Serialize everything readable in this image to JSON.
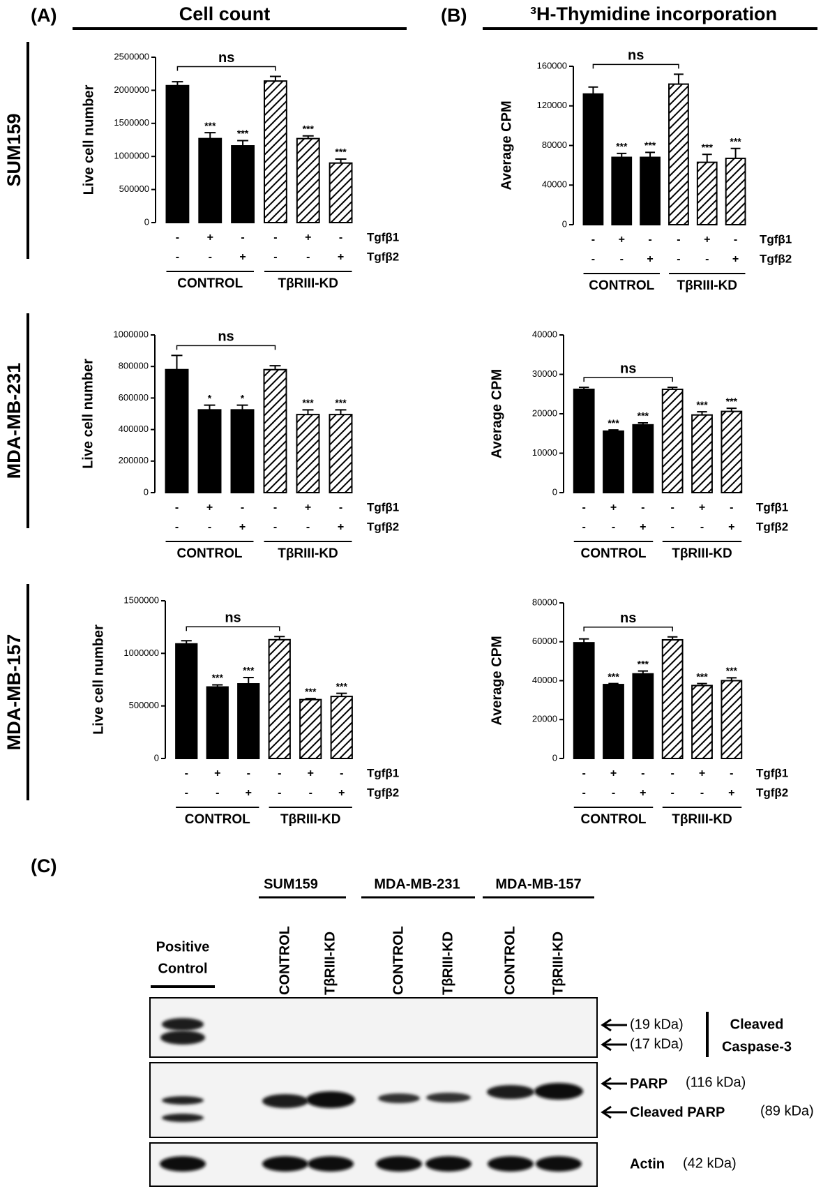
{
  "headers": [
    {
      "label": "(A)",
      "title": "Cell count"
    },
    {
      "label": "(B)",
      "title": "³H-Thymidine incorporation"
    }
  ],
  "row_labels": [
    "SUM159",
    "MDA-MB-231",
    "MDA-MB-157"
  ],
  "chart_data": [
    {
      "type": "bar",
      "ylabel": "Live cell number",
      "ylim": [
        0,
        2500000
      ],
      "yticks": [
        0,
        500000,
        1000000,
        1500000,
        2000000,
        2500000
      ],
      "values": [
        2070000,
        1270000,
        1160000,
        2140000,
        1270000,
        900000
      ],
      "errors": [
        60000,
        90000,
        80000,
        70000,
        40000,
        60000
      ],
      "fills": [
        "solid",
        "solid",
        "solid",
        "hatch",
        "hatch",
        "hatch"
      ],
      "color": "#000000",
      "significance": [
        null,
        "***",
        "***",
        null,
        "***",
        "***"
      ],
      "annotation": "ns",
      "treatments": [
        {
          "name": "Tgfβ1",
          "signs": [
            "-",
            "+",
            "-",
            "-",
            "+",
            "-"
          ]
        },
        {
          "name": "Tgfβ2",
          "signs": [
            "-",
            "-",
            "+",
            "-",
            "-",
            "+"
          ]
        }
      ],
      "groups": [
        "CONTROL",
        "TβRIII-KD"
      ]
    },
    {
      "type": "bar",
      "ylabel": "Average CPM",
      "ylim": [
        0,
        160000
      ],
      "yticks": [
        0,
        40000,
        80000,
        120000,
        160000
      ],
      "values": [
        132000,
        68000,
        68000,
        142000,
        63000,
        67000
      ],
      "errors": [
        7000,
        4000,
        5000,
        10000,
        8000,
        10000
      ],
      "fills": [
        "solid",
        "solid",
        "solid",
        "hatch",
        "hatch",
        "hatch"
      ],
      "color": "#000000",
      "significance": [
        null,
        "***",
        "***",
        null,
        "***",
        "***"
      ],
      "annotation": "ns",
      "treatments": [
        {
          "name": "Tgfβ1",
          "signs": [
            "-",
            "+",
            "-",
            "-",
            "+",
            "-"
          ]
        },
        {
          "name": "Tgfβ2",
          "signs": [
            "-",
            "-",
            "+",
            "-",
            "-",
            "+"
          ]
        }
      ],
      "groups": [
        "CONTROL",
        "TβRIII-KD"
      ]
    },
    {
      "type": "bar",
      "ylabel": "Live cell number",
      "ylim": [
        0,
        1000000
      ],
      "yticks": [
        0,
        200000,
        400000,
        600000,
        800000,
        1000000
      ],
      "values": [
        780000,
        525000,
        525000,
        780000,
        495000,
        495000
      ],
      "errors": [
        90000,
        30000,
        30000,
        25000,
        30000,
        30000
      ],
      "fills": [
        "solid",
        "solid",
        "solid",
        "hatch",
        "hatch",
        "hatch"
      ],
      "color": "#000000",
      "significance": [
        null,
        "*",
        "*",
        null,
        "***",
        "***"
      ],
      "annotation": "ns",
      "treatments": [
        {
          "name": "Tgfβ1",
          "signs": [
            "-",
            "+",
            "-",
            "-",
            "+",
            "-"
          ]
        },
        {
          "name": "Tgfβ2",
          "signs": [
            "-",
            "-",
            "+",
            "-",
            "-",
            "+"
          ]
        }
      ],
      "groups": [
        "CONTROL",
        "TβRIII-KD"
      ]
    },
    {
      "type": "bar",
      "ylabel": "Average CPM",
      "ylim": [
        0,
        40000
      ],
      "yticks": [
        0,
        10000,
        20000,
        30000,
        40000
      ],
      "values": [
        26200,
        15600,
        17200,
        26200,
        19700,
        20600
      ],
      "errors": [
        500,
        300,
        500,
        500,
        800,
        800
      ],
      "fills": [
        "solid",
        "solid",
        "solid",
        "hatch",
        "hatch",
        "hatch"
      ],
      "color": "#000000",
      "significance": [
        null,
        "***",
        "***",
        null,
        "***",
        "***"
      ],
      "annotation": "ns",
      "treatments": [
        {
          "name": "Tgfβ1",
          "signs": [
            "-",
            "+",
            "-",
            "-",
            "+",
            "-"
          ]
        },
        {
          "name": "Tgfβ2",
          "signs": [
            "-",
            "-",
            "+",
            "-",
            "-",
            "+"
          ]
        }
      ],
      "groups": [
        "CONTROL",
        "TβRIII-KD"
      ]
    },
    {
      "type": "bar",
      "ylabel": "Live cell number",
      "ylim": [
        0,
        1500000
      ],
      "yticks": [
        0,
        500000,
        1000000,
        1500000
      ],
      "values": [
        1090000,
        680000,
        710000,
        1130000,
        560000,
        590000
      ],
      "errors": [
        30000,
        20000,
        60000,
        30000,
        10000,
        30000
      ],
      "fills": [
        "solid",
        "solid",
        "solid",
        "hatch",
        "hatch",
        "hatch"
      ],
      "color": "#000000",
      "significance": [
        null,
        "***",
        "***",
        null,
        "***",
        "***"
      ],
      "annotation": "ns",
      "treatments": [
        {
          "name": "Tgfβ1",
          "signs": [
            "-",
            "+",
            "-",
            "-",
            "+",
            "-"
          ]
        },
        {
          "name": "Tgfβ2",
          "signs": [
            "-",
            "-",
            "+",
            "-",
            "-",
            "+"
          ]
        }
      ],
      "groups": [
        "CONTROL",
        "TβRIII-KD"
      ]
    },
    {
      "type": "bar",
      "ylabel": "Average CPM",
      "ylim": [
        0,
        80000
      ],
      "yticks": [
        0,
        20000,
        40000,
        60000,
        80000
      ],
      "values": [
        59500,
        38000,
        43500,
        61000,
        37500,
        40000
      ],
      "errors": [
        2000,
        500,
        1500,
        1500,
        1000,
        1500
      ],
      "fills": [
        "solid",
        "solid",
        "solid",
        "hatch",
        "hatch",
        "hatch"
      ],
      "color": "#000000",
      "significance": [
        null,
        "***",
        "***",
        null,
        "***",
        "***"
      ],
      "annotation": "ns",
      "treatments": [
        {
          "name": "Tgfβ1",
          "signs": [
            "-",
            "+",
            "-",
            "-",
            "+",
            "-"
          ]
        },
        {
          "name": "Tgfβ2",
          "signs": [
            "-",
            "-",
            "+",
            "-",
            "-",
            "+"
          ]
        }
      ],
      "groups": [
        "CONTROL",
        "TβRIII-KD"
      ]
    }
  ],
  "blot": {
    "label": "(C)",
    "cell_lines": [
      "SUM159",
      "MDA-MB-231",
      "MDA-MB-157"
    ],
    "lanes": [
      "CONTROL",
      "TβRIII-KD",
      "CONTROL",
      "TβRIII-KD",
      "CONTROL",
      "TβRIII-KD"
    ],
    "positive_control": [
      "Positive",
      "Control"
    ],
    "caspase": {
      "sizes": [
        "(19 kDa)",
        "(17 kDa)"
      ],
      "name": [
        "Cleaved",
        "Caspase-3"
      ]
    },
    "markers": [
      {
        "name": "PARP",
        "size": "(116 kDa)"
      },
      {
        "name": "Cleaved PARP",
        "size": "(89 kDa)"
      },
      {
        "name": "Actin",
        "size": "(42 kDa)"
      }
    ]
  }
}
